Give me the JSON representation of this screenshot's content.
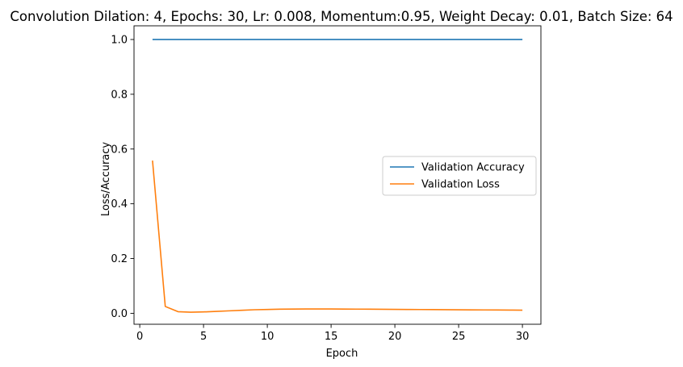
{
  "chart_data": {
    "type": "line",
    "title": "Convolution Dilation: 4, Epochs: 30, Lr: 0.008, Momentum:0.95, Weight Decay: 0.01, Batch Size: 64",
    "xlabel": "Epoch",
    "ylabel": "Loss/Accuracy",
    "xlim": [
      -0.45,
      31.45
    ],
    "ylim": [
      -0.04,
      1.05
    ],
    "xticks": [
      0,
      5,
      10,
      15,
      20,
      25,
      30
    ],
    "xtick_labels": [
      "0",
      "5",
      "10",
      "15",
      "20",
      "25",
      "30"
    ],
    "yticks": [
      0.0,
      0.2,
      0.4,
      0.6,
      0.8,
      1.0
    ],
    "ytick_labels": [
      "0.0",
      "0.2",
      "0.4",
      "0.6",
      "0.8",
      "1.0"
    ],
    "grid": false,
    "legend_position": "center-right",
    "x": [
      1,
      2,
      3,
      4,
      5,
      6,
      7,
      8,
      9,
      10,
      11,
      12,
      13,
      14,
      15,
      16,
      17,
      18,
      19,
      20,
      21,
      22,
      23,
      24,
      25,
      26,
      27,
      28,
      29,
      30
    ],
    "series": [
      {
        "name": "Validation Accuracy",
        "color": "#1f77b4",
        "values": [
          1.0,
          1.0,
          1.0,
          1.0,
          1.0,
          1.0,
          1.0,
          1.0,
          1.0,
          1.0,
          1.0,
          1.0,
          1.0,
          1.0,
          1.0,
          1.0,
          1.0,
          1.0,
          1.0,
          1.0,
          1.0,
          1.0,
          1.0,
          1.0,
          1.0,
          1.0,
          1.0,
          1.0,
          1.0,
          1.0
        ]
      },
      {
        "name": "Validation Loss",
        "color": "#ff7f0e",
        "values": [
          0.558,
          0.025,
          0.006,
          0.004,
          0.005,
          0.007,
          0.009,
          0.011,
          0.013,
          0.014,
          0.015,
          0.0155,
          0.0157,
          0.0158,
          0.0157,
          0.0155,
          0.0152,
          0.015,
          0.0147,
          0.0144,
          0.0141,
          0.0138,
          0.0135,
          0.0132,
          0.0129,
          0.0126,
          0.0123,
          0.0121,
          0.0118,
          0.0115
        ]
      }
    ]
  }
}
